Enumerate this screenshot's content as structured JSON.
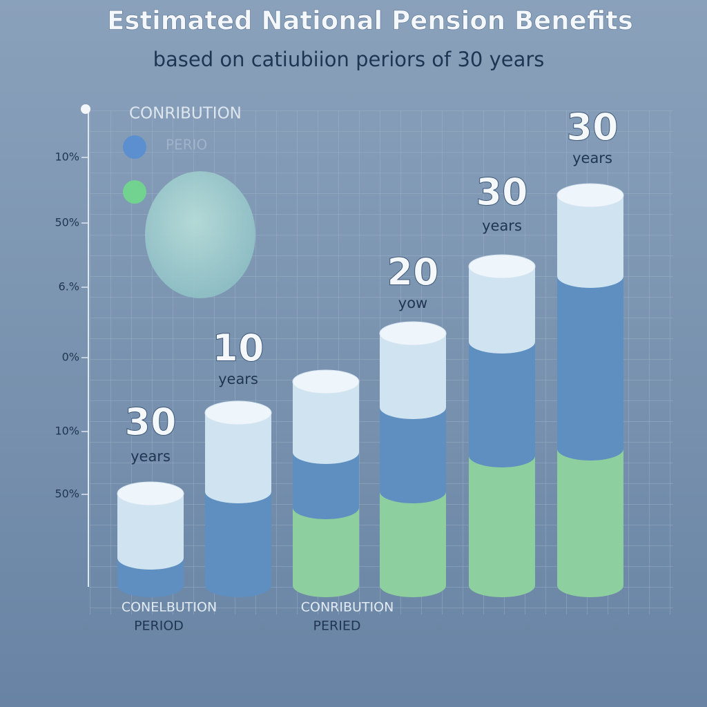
{
  "title": "Estimated National Pension Benefits",
  "subtitle": "based on catiubiion periors of 30 years",
  "legend": {
    "heading": "CONRIBUTION",
    "items": [
      "PERIO"
    ]
  },
  "y_axis_labels": [
    "10%",
    "50%",
    "6.%",
    "0%",
    "10%",
    "50%"
  ],
  "column_labels": [
    {
      "number": "30",
      "unit": "years"
    },
    {
      "number": "10",
      "unit": "years"
    },
    {
      "number": "20",
      "unit": "yow"
    },
    {
      "number": "30",
      "unit": "years"
    },
    {
      "number": "30",
      "unit": "years"
    }
  ],
  "x_labels": [
    {
      "line1": "CONELBUTION",
      "line2": "PERIOD"
    },
    {
      "line1": "CONRIBUTION",
      "line2": "PERIED"
    }
  ]
}
